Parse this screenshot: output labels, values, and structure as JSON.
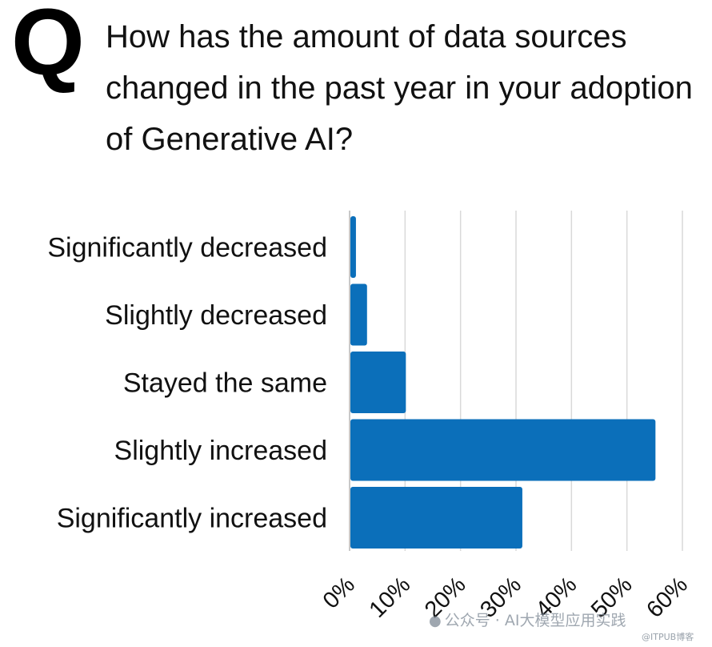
{
  "header": {
    "q_letter": "Q",
    "question": "How has the amount of data sources changed in the past year in your adoption of Generative AI?"
  },
  "chart_data": {
    "type": "bar",
    "orientation": "horizontal",
    "title": "",
    "xlabel": "",
    "ylabel": "",
    "categories": [
      "Significantly decreased",
      "Slightly decreased",
      "Stayed the same",
      "Slightly increased",
      "Significantly increased"
    ],
    "values": [
      1,
      3,
      10,
      55,
      31
    ],
    "xlim": [
      0,
      60
    ],
    "x_ticks": [
      "0%",
      "10%",
      "20%",
      "30%",
      "40%",
      "50%",
      "60%"
    ],
    "grid": true,
    "bar_color": "#0b6fba",
    "grid_color": "#d9d9d9"
  },
  "watermark": {
    "icon": "wechat-icon",
    "text": "公众号 · AI大模型应用实践",
    "source": "@ITPUB博客"
  }
}
